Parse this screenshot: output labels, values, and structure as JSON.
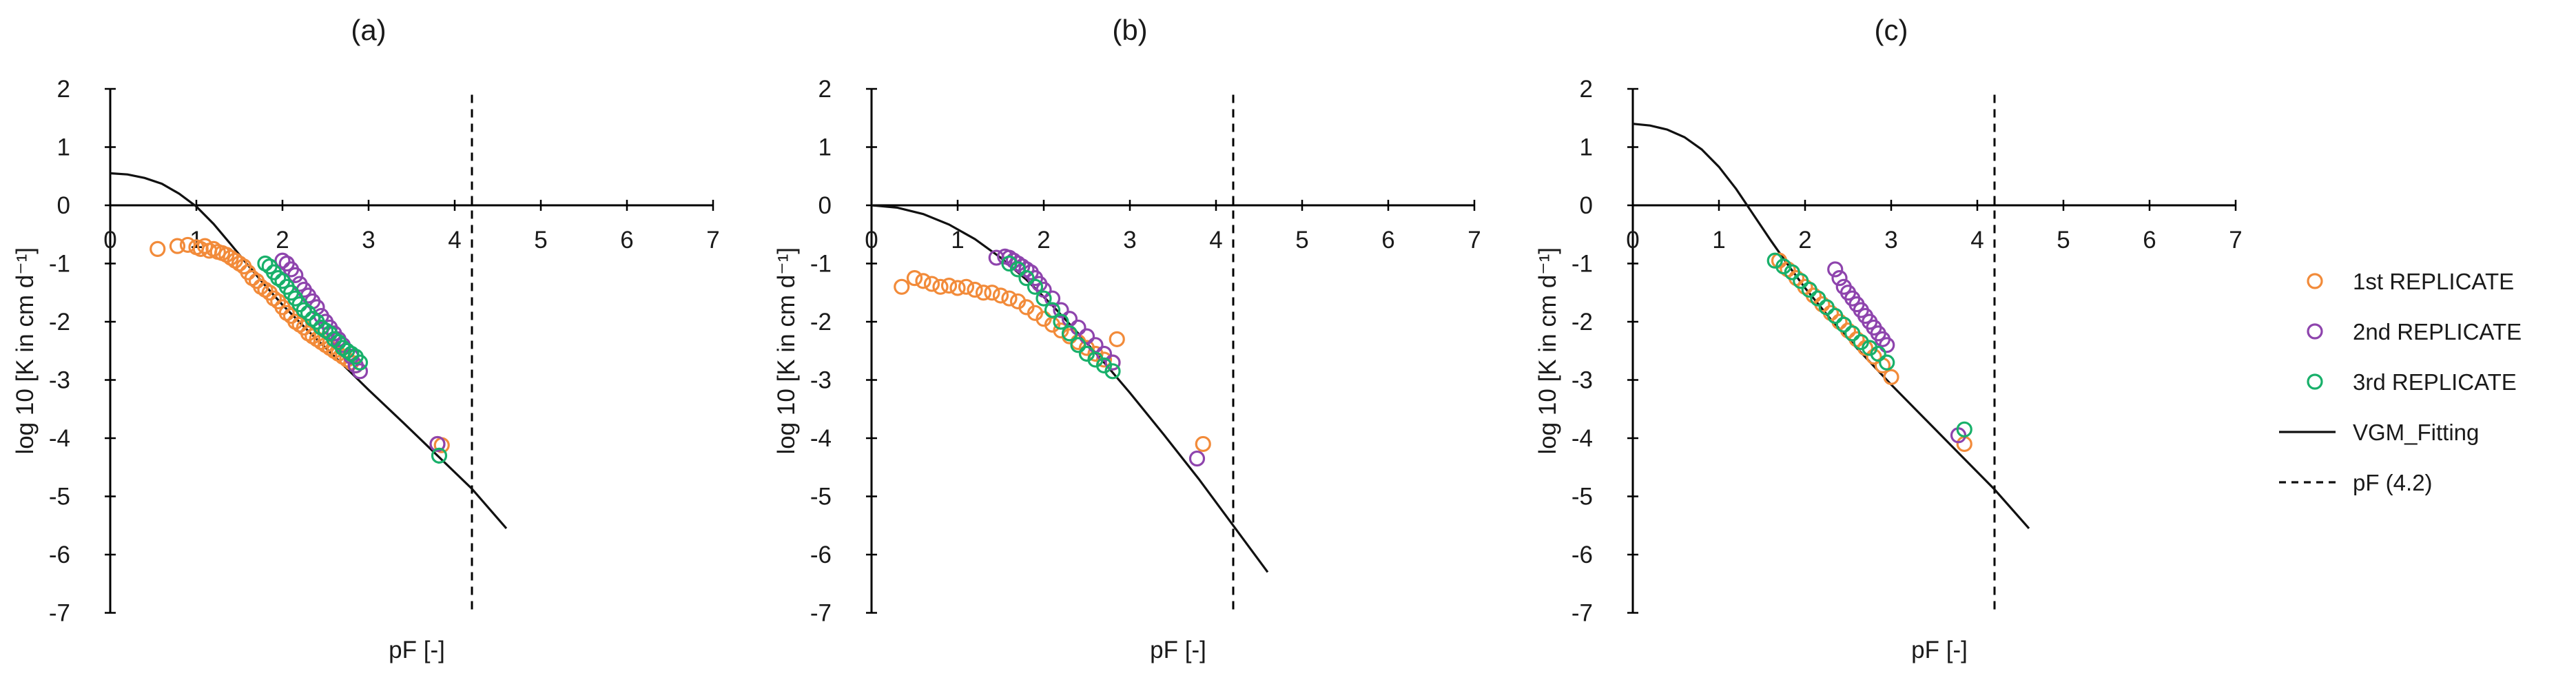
{
  "colors": {
    "rep1": "#F28B3A",
    "rep2": "#8E44AD",
    "rep3": "#18B06A",
    "fit": "#111111",
    "axis": "#000000"
  },
  "legend": {
    "items": [
      {
        "label": "1st REPLICATE",
        "kind": "marker",
        "series": "rep1"
      },
      {
        "label": "2nd REPLICATE",
        "kind": "marker",
        "series": "rep2"
      },
      {
        "label": "3rd REPLICATE",
        "kind": "marker",
        "series": "rep3"
      },
      {
        "label": "VGM_Fitting",
        "kind": "line"
      },
      {
        "label": "pF (4.2)",
        "kind": "dashed"
      }
    ]
  },
  "chart_data": [
    {
      "type": "scatter",
      "title": "(a)",
      "xlabel": "pF [-]",
      "ylabel": "log 10 [K in cm d⁻¹]",
      "xlim": [
        0,
        7
      ],
      "ylim": [
        -7,
        2
      ],
      "xticks": [
        "0",
        "1",
        "2",
        "3",
        "4",
        "5",
        "6",
        "7"
      ],
      "yticks": [
        "2",
        "1",
        "0",
        "-1",
        "-2",
        "-3",
        "-4",
        "-5",
        "-6",
        "-7"
      ],
      "pf_line": 4.2,
      "fit": {
        "y0": 0.55,
        "x": [
          0,
          0.2,
          0.4,
          0.6,
          0.8,
          1.0,
          1.2,
          1.4,
          1.6,
          1.8,
          2.0,
          2.3,
          2.6,
          3.0,
          3.4,
          3.8,
          4.2,
          4.6
        ],
        "y": [
          0.55,
          0.53,
          0.47,
          0.37,
          0.2,
          -0.02,
          -0.32,
          -0.67,
          -1.03,
          -1.38,
          -1.71,
          -2.16,
          -2.59,
          -3.17,
          -3.73,
          -4.3,
          -4.87,
          -5.55
        ]
      },
      "series": [
        {
          "name": "1st REPLICATE",
          "x": [
            0.55,
            0.78,
            0.9,
            1.0,
            1.05,
            1.1,
            1.15,
            1.2,
            1.25,
            1.3,
            1.35,
            1.4,
            1.45,
            1.5,
            1.55,
            1.6,
            1.65,
            1.7,
            1.75,
            1.8,
            1.85,
            1.9,
            1.95,
            2.0,
            2.05,
            2.1,
            2.15,
            2.2,
            2.25,
            2.3,
            2.35,
            2.4,
            2.45,
            2.5,
            2.55,
            2.6,
            2.65,
            2.7,
            2.75,
            2.8,
            2.85,
            3.8,
            3.85
          ],
          "y": [
            -0.75,
            -0.7,
            -0.68,
            -0.72,
            -0.75,
            -0.7,
            -0.78,
            -0.75,
            -0.8,
            -0.82,
            -0.85,
            -0.9,
            -0.95,
            -1.0,
            -1.05,
            -1.15,
            -1.25,
            -1.3,
            -1.4,
            -1.45,
            -1.5,
            -1.6,
            -1.65,
            -1.75,
            -1.85,
            -1.9,
            -2.0,
            -2.05,
            -2.1,
            -2.2,
            -2.25,
            -2.3,
            -2.35,
            -2.4,
            -2.45,
            -2.5,
            -2.55,
            -2.6,
            -2.65,
            -2.7,
            -2.75,
            -4.1,
            -4.12
          ]
        },
        {
          "name": "2nd REPLICATE",
          "x": [
            2.0,
            2.05,
            2.1,
            2.15,
            2.2,
            2.25,
            2.3,
            2.35,
            2.4,
            2.45,
            2.5,
            2.55,
            2.6,
            2.65,
            2.7,
            2.75,
            2.8,
            2.85,
            2.9,
            3.8
          ],
          "y": [
            -0.95,
            -1.0,
            -1.1,
            -1.2,
            -1.35,
            -1.45,
            -1.55,
            -1.65,
            -1.75,
            -1.9,
            -2.0,
            -2.1,
            -2.2,
            -2.3,
            -2.4,
            -2.5,
            -2.6,
            -2.75,
            -2.85,
            -4.1
          ]
        },
        {
          "name": "3rd REPLICATE",
          "x": [
            1.8,
            1.85,
            1.9,
            1.95,
            2.0,
            2.05,
            2.1,
            2.15,
            2.2,
            2.25,
            2.3,
            2.35,
            2.4,
            2.45,
            2.5,
            2.55,
            2.6,
            2.65,
            2.7,
            2.75,
            2.8,
            2.85,
            2.9,
            3.82
          ],
          "y": [
            -1.0,
            -1.05,
            -1.15,
            -1.25,
            -1.3,
            -1.4,
            -1.5,
            -1.6,
            -1.7,
            -1.8,
            -1.85,
            -1.95,
            -2.0,
            -2.1,
            -2.15,
            -2.2,
            -2.3,
            -2.35,
            -2.45,
            -2.5,
            -2.55,
            -2.6,
            -2.7,
            -4.3
          ]
        }
      ]
    },
    {
      "type": "scatter",
      "title": "(b)",
      "xlabel": "pF [-]",
      "ylabel": "log 10 [K in cm d⁻¹]",
      "xlim": [
        0,
        7
      ],
      "ylim": [
        -7,
        2
      ],
      "xticks": [
        "0",
        "1",
        "2",
        "3",
        "4",
        "5",
        "6",
        "7"
      ],
      "yticks": [
        "2",
        "1",
        "0",
        "-1",
        "-2",
        "-3",
        "-4",
        "-5",
        "-6",
        "-7"
      ],
      "pf_line": 4.2,
      "fit": {
        "y0": 0.0,
        "x": [
          0,
          0.3,
          0.6,
          0.9,
          1.2,
          1.5,
          1.8,
          2.1,
          2.4,
          2.7,
          3.0,
          3.4,
          3.8,
          4.2,
          4.6
        ],
        "y": [
          0.0,
          -0.04,
          -0.15,
          -0.33,
          -0.58,
          -0.9,
          -1.28,
          -1.72,
          -2.2,
          -2.7,
          -3.22,
          -3.95,
          -4.7,
          -5.5,
          -6.3
        ]
      },
      "series": [
        {
          "name": "1st REPLICATE",
          "x": [
            0.35,
            0.5,
            0.6,
            0.7,
            0.8,
            0.9,
            1.0,
            1.1,
            1.2,
            1.3,
            1.4,
            1.5,
            1.6,
            1.7,
            1.8,
            1.9,
            2.0,
            2.1,
            2.2,
            2.3,
            2.4,
            2.5,
            2.6,
            2.7,
            2.8,
            2.85,
            3.85
          ],
          "y": [
            -1.4,
            -1.25,
            -1.3,
            -1.35,
            -1.4,
            -1.38,
            -1.42,
            -1.4,
            -1.45,
            -1.5,
            -1.5,
            -1.55,
            -1.6,
            -1.65,
            -1.75,
            -1.85,
            -1.95,
            -2.05,
            -2.15,
            -2.25,
            -2.35,
            -2.45,
            -2.55,
            -2.65,
            -2.7,
            -2.3,
            -4.1
          ]
        },
        {
          "name": "2nd REPLICATE",
          "x": [
            1.45,
            1.55,
            1.6,
            1.65,
            1.7,
            1.75,
            1.8,
            1.85,
            1.9,
            1.95,
            2.0,
            2.1,
            2.2,
            2.3,
            2.4,
            2.5,
            2.6,
            2.7,
            2.8,
            3.78
          ],
          "y": [
            -0.9,
            -0.88,
            -0.9,
            -0.95,
            -1.0,
            -1.05,
            -1.1,
            -1.15,
            -1.25,
            -1.35,
            -1.45,
            -1.6,
            -1.8,
            -1.95,
            -2.1,
            -2.25,
            -2.4,
            -2.55,
            -2.7,
            -4.35
          ]
        },
        {
          "name": "3rd REPLICATE",
          "x": [
            1.6,
            1.7,
            1.8,
            1.9,
            2.0,
            2.1,
            2.2,
            2.3,
            2.4,
            2.5,
            2.6,
            2.7,
            2.8
          ],
          "y": [
            -1.0,
            -1.1,
            -1.25,
            -1.4,
            -1.6,
            -1.8,
            -2.0,
            -2.2,
            -2.4,
            -2.55,
            -2.65,
            -2.75,
            -2.85
          ]
        }
      ]
    },
    {
      "type": "scatter",
      "title": "(c)",
      "xlabel": "pF [-]",
      "ylabel": "log 10 [K in cm d⁻¹]",
      "xlim": [
        0,
        7
      ],
      "ylim": [
        -7,
        2
      ],
      "xticks": [
        "0",
        "1",
        "2",
        "3",
        "4",
        "5",
        "6",
        "7"
      ],
      "yticks": [
        "2",
        "1",
        "0",
        "-1",
        "-2",
        "-3",
        "-4",
        "-5",
        "-6",
        "-7"
      ],
      "pf_line": 4.2,
      "fit": {
        "y0": 1.4,
        "x": [
          0,
          0.2,
          0.4,
          0.6,
          0.8,
          1.0,
          1.2,
          1.4,
          1.6,
          1.8,
          2.0,
          2.3,
          2.6,
          3.0,
          3.4,
          3.8,
          4.2,
          4.6
        ],
        "y": [
          1.4,
          1.37,
          1.3,
          1.17,
          0.96,
          0.66,
          0.28,
          -0.16,
          -0.6,
          -1.02,
          -1.42,
          -1.96,
          -2.45,
          -3.08,
          -3.68,
          -4.28,
          -4.88,
          -5.55
        ]
      },
      "series": [
        {
          "name": "1st REPLICATE",
          "x": [
            1.7,
            1.8,
            1.9,
            2.0,
            2.1,
            2.2,
            2.3,
            2.4,
            2.5,
            2.6,
            2.7,
            2.8,
            2.9,
            3.0,
            3.85
          ],
          "y": [
            -0.95,
            -1.1,
            -1.25,
            -1.4,
            -1.55,
            -1.7,
            -1.85,
            -2.0,
            -2.15,
            -2.3,
            -2.45,
            -2.6,
            -2.75,
            -2.95,
            -4.1
          ]
        },
        {
          "name": "2nd REPLICATE",
          "x": [
            2.35,
            2.4,
            2.45,
            2.5,
            2.55,
            2.6,
            2.65,
            2.7,
            2.75,
            2.8,
            2.85,
            2.9,
            2.95,
            3.78
          ],
          "y": [
            -1.1,
            -1.25,
            -1.4,
            -1.5,
            -1.6,
            -1.7,
            -1.8,
            -1.9,
            -2.0,
            -2.1,
            -2.2,
            -2.3,
            -2.4,
            -3.95
          ]
        },
        {
          "name": "3rd REPLICATE",
          "x": [
            1.65,
            1.75,
            1.85,
            1.95,
            2.05,
            2.15,
            2.25,
            2.35,
            2.45,
            2.55,
            2.65,
            2.75,
            2.85,
            2.95,
            3.85
          ],
          "y": [
            -0.95,
            -1.05,
            -1.15,
            -1.3,
            -1.45,
            -1.6,
            -1.75,
            -1.9,
            -2.05,
            -2.2,
            -2.35,
            -2.45,
            -2.55,
            -2.7,
            -3.85
          ]
        }
      ]
    }
  ]
}
